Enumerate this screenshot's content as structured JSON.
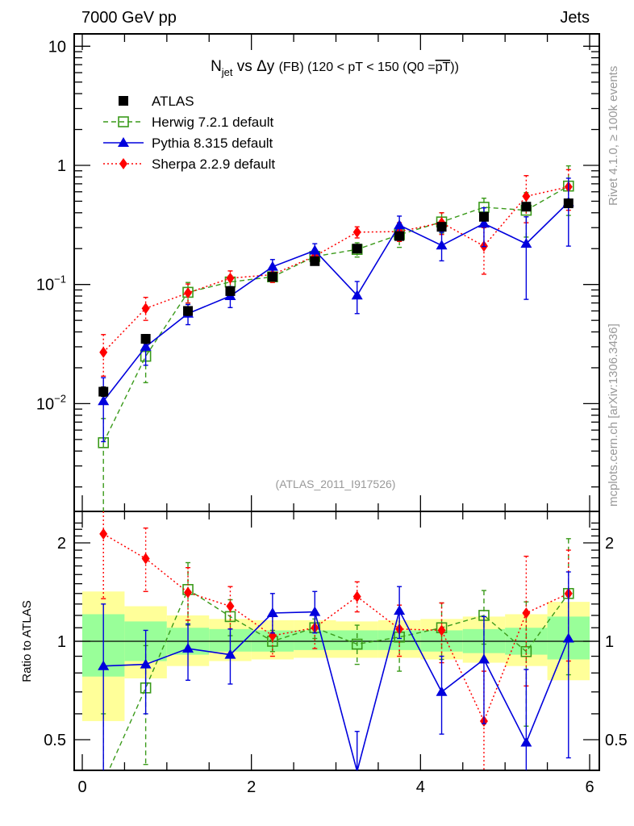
{
  "header": {
    "left": "7000 GeV pp",
    "right": "Jets"
  },
  "side_labels": {
    "rivet": "Rivet 4.1.0, ≥ 100k events",
    "mcplots": "mcplots.cern.ch [arXiv:1306.3436]"
  },
  "watermark": "(ATLAS_2011_I917526)",
  "colors": {
    "atlas": "#000000",
    "herwig": "#3a9a1a",
    "pythia": "#0000dd",
    "sherpa": "#ff0000",
    "band_outer": "#ffff99",
    "band_inner": "#99ff99"
  },
  "chart_data": [
    {
      "type": "line",
      "panel": "main",
      "title": {
        "n": "N",
        "sub": "jet",
        "rest1": " vs Δy ",
        "fb": "(FB)",
        "rest2": " (120 < pT < 150 (Q0 =",
        "pt": "pT",
        "close": "))"
      },
      "xlabel": "",
      "ylabel": "",
      "yscale": "log",
      "xlim": [
        0,
        6
      ],
      "ylim": [
        0.00124,
        20
      ],
      "yticks": [
        {
          "v": 0.01,
          "base": "10",
          "exp": "−2"
        },
        {
          "v": 0.1,
          "base": "10",
          "exp": "−1"
        },
        {
          "v": 1,
          "base": "1",
          "exp": ""
        },
        {
          "v": 10,
          "base": "10",
          "exp": ""
        }
      ],
      "legend": {
        "position": "top-left",
        "entries": [
          {
            "key": "atlas",
            "label": "ATLAS"
          },
          {
            "key": "herwig",
            "label": "Herwig 7.2.1 default"
          },
          {
            "key": "pythia",
            "label": "Pythia 8.315 default"
          },
          {
            "key": "sherpa",
            "label": "Sherpa 2.2.9 default"
          }
        ]
      },
      "x": [
        0.25,
        0.75,
        1.25,
        1.75,
        2.25,
        2.75,
        3.25,
        3.75,
        4.25,
        4.75,
        5.25,
        5.75
      ],
      "series": [
        {
          "key": "atlas",
          "name": "ATLAS",
          "values": [
            0.0126,
            0.035,
            0.06,
            0.088,
            0.116,
            0.157,
            0.2,
            0.255,
            0.305,
            0.37,
            0.45,
            0.48
          ],
          "err_lo": [
            0.0115,
            0.032,
            0.055,
            0.082,
            0.11,
            0.15,
            0.19,
            0.245,
            0.29,
            0.35,
            0.425,
            0.455
          ],
          "err_hi": [
            0.0138,
            0.038,
            0.065,
            0.094,
            0.122,
            0.165,
            0.21,
            0.265,
            0.32,
            0.39,
            0.475,
            0.505
          ]
        },
        {
          "key": "herwig",
          "name": "Herwig 7.2.1 default",
          "values": [
            0.0047,
            0.025,
            0.086,
            0.105,
            0.116,
            0.172,
            0.197,
            0.262,
            0.335,
            0.445,
            0.42,
            0.67
          ],
          "err_lo": [
            0.0005,
            0.015,
            0.068,
            0.092,
            0.108,
            0.16,
            0.17,
            0.205,
            0.27,
            0.37,
            0.25,
            0.38
          ],
          "err_hi": [
            0.0075,
            0.034,
            0.104,
            0.118,
            0.125,
            0.184,
            0.224,
            0.32,
            0.4,
            0.53,
            0.59,
            0.99
          ]
        },
        {
          "key": "pythia",
          "name": "Pythia 8.315 default",
          "values": [
            0.0105,
            0.03,
            0.057,
            0.08,
            0.141,
            0.193,
            0.081,
            0.315,
            0.213,
            0.325,
            0.22,
            0.49
          ],
          "err_lo": [
            0.0048,
            0.021,
            0.046,
            0.064,
            0.122,
            0.168,
            0.057,
            0.26,
            0.158,
            0.208,
            0.075,
            0.21
          ],
          "err_hi": [
            0.0165,
            0.038,
            0.068,
            0.096,
            0.162,
            0.22,
            0.106,
            0.375,
            0.275,
            0.44,
            0.37,
            0.78
          ]
        },
        {
          "key": "sherpa",
          "name": "Sherpa 2.2.9 default",
          "values": [
            0.027,
            0.063,
            0.085,
            0.113,
            0.121,
            0.173,
            0.275,
            0.278,
            0.33,
            0.21,
            0.55,
            0.66
          ],
          "err_lo": [
            0.017,
            0.05,
            0.07,
            0.096,
            0.104,
            0.153,
            0.246,
            0.23,
            0.263,
            0.122,
            0.33,
            0.42
          ],
          "err_hi": [
            0.038,
            0.078,
            0.101,
            0.13,
            0.138,
            0.193,
            0.305,
            0.33,
            0.4,
            0.3,
            0.82,
            0.92
          ]
        }
      ]
    },
    {
      "type": "line",
      "panel": "ratio",
      "ylabel": "Ratio to ATLAS",
      "xlabel": "",
      "yscale": "log",
      "xlim": [
        0,
        6
      ],
      "ylim": [
        0.4,
        2.4
      ],
      "xticks": [
        0,
        2,
        4,
        6
      ],
      "yticks": [
        0.5,
        1,
        2
      ],
      "reference_line": 1,
      "bin_edges": [
        0,
        0.5,
        1.0,
        1.5,
        2.0,
        2.5,
        3.0,
        3.5,
        4.0,
        4.5,
        5.0,
        5.5,
        6.0
      ],
      "band_outer": {
        "lo": [
          0.57,
          0.77,
          0.84,
          0.87,
          0.88,
          0.89,
          0.89,
          0.89,
          0.88,
          0.86,
          0.84,
          0.76
        ],
        "hi": [
          1.42,
          1.28,
          1.2,
          1.17,
          1.16,
          1.16,
          1.15,
          1.16,
          1.17,
          1.19,
          1.21,
          1.32
        ]
      },
      "band_inner": {
        "lo": [
          0.78,
          0.87,
          0.91,
          0.93,
          0.93,
          0.94,
          0.94,
          0.94,
          0.93,
          0.92,
          0.91,
          0.88
        ],
        "hi": [
          1.21,
          1.15,
          1.1,
          1.09,
          1.08,
          1.08,
          1.08,
          1.08,
          1.08,
          1.09,
          1.1,
          1.19
        ]
      },
      "x": [
        0.25,
        0.75,
        1.25,
        1.75,
        2.25,
        2.75,
        3.25,
        3.75,
        4.25,
        4.75,
        5.25,
        5.75
      ],
      "series": [
        {
          "key": "herwig",
          "name": "Herwig 7.2.1 default",
          "values": [
            0.37,
            0.72,
            1.44,
            1.19,
            1.0,
            1.1,
            0.98,
            1.03,
            1.1,
            1.2,
            0.93,
            1.4
          ],
          "err_lo": [
            0.04,
            0.42,
            1.12,
            1.04,
            0.93,
            1.02,
            0.85,
            0.81,
            0.88,
            0.98,
            0.55,
            0.79
          ],
          "err_hi": [
            0.6,
            0.97,
            1.74,
            1.34,
            1.08,
            1.17,
            1.12,
            1.25,
            1.31,
            1.43,
            1.32,
            2.06
          ]
        },
        {
          "key": "pythia",
          "name": "Pythia 8.315 default",
          "values": [
            0.84,
            0.85,
            0.95,
            0.91,
            1.22,
            1.23,
            0.4,
            1.24,
            0.7,
            0.88,
            0.49,
            1.02
          ],
          "err_lo": [
            0.38,
            0.6,
            0.76,
            0.74,
            1.06,
            1.06,
            0.29,
            1.02,
            0.52,
            0.56,
            0.17,
            0.44
          ],
          "err_hi": [
            1.3,
            1.08,
            1.13,
            1.09,
            1.4,
            1.42,
            0.53,
            1.47,
            0.9,
            1.19,
            0.82,
            1.63
          ]
        },
        {
          "key": "sherpa",
          "name": "Sherpa 2.2.9 default",
          "values": [
            2.13,
            1.79,
            1.41,
            1.28,
            1.04,
            1.1,
            1.37,
            1.09,
            1.08,
            0.57,
            1.22,
            1.4
          ],
          "err_lo": [
            1.35,
            1.42,
            1.16,
            1.09,
            0.9,
            0.95,
            1.23,
            0.9,
            0.86,
            0.33,
            0.73,
            0.87
          ],
          "err_hi": [
            3.0,
            2.22,
            1.68,
            1.47,
            1.19,
            1.24,
            1.52,
            1.29,
            1.31,
            0.81,
            1.82,
            1.9
          ]
        }
      ]
    }
  ]
}
